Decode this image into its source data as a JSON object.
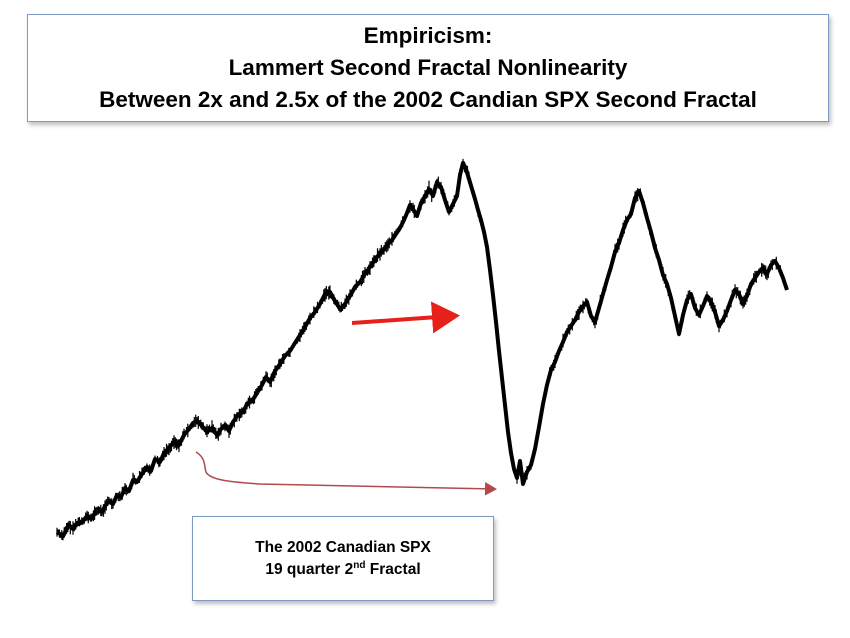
{
  "title": {
    "line1": "Empiricism:",
    "line2": "Lammert Second Fractal Nonlinearity",
    "line3": "Between 2x and 2.5x of the 2002 Candian SPX Second Fractal"
  },
  "caption": {
    "line1": "The 2002 Canadian SPX",
    "line2_prefix": "19 quarter 2",
    "line2_sup": "nd",
    "line2_suffix": " Fractal"
  },
  "colors": {
    "series": "#000000",
    "pointer_arrow": "#e8201a",
    "span_arrow": "#b24a4a"
  },
  "chart_data": {
    "type": "line",
    "title": "",
    "xlabel": "",
    "ylabel": "",
    "grid": false,
    "note": "",
    "x": [
      0,
      6,
      12,
      16,
      20,
      26,
      30,
      34,
      40,
      45,
      48,
      52,
      56,
      60,
      64,
      68,
      72,
      76,
      80,
      85,
      90,
      94,
      98,
      103,
      107,
      112,
      117,
      122,
      127,
      132,
      136,
      140,
      145,
      150,
      155,
      160,
      164,
      168,
      172,
      176,
      181,
      186,
      190,
      195,
      200,
      205,
      209,
      213,
      218,
      223,
      228,
      233,
      238,
      243,
      248,
      253,
      258,
      263,
      268,
      273,
      278,
      283,
      288,
      293,
      298,
      303,
      308,
      313,
      318,
      323,
      327,
      331,
      335,
      339,
      343,
      347,
      350,
      353,
      356,
      360,
      364,
      368,
      372,
      376,
      380,
      384,
      388,
      392,
      396,
      400,
      403,
      406,
      409,
      412,
      415,
      418,
      421,
      424,
      427,
      430,
      433,
      436,
      439,
      442,
      445,
      448,
      451,
      454,
      457,
      460,
      463,
      466,
      470,
      474,
      478,
      482,
      486,
      490,
      494,
      498,
      502,
      506,
      510,
      514,
      518,
      522,
      526,
      530,
      534,
      538,
      542,
      546,
      550,
      554,
      558,
      562,
      566,
      570,
      574,
      578,
      582,
      586,
      590,
      594,
      598,
      602,
      606,
      610,
      614,
      618,
      622,
      626,
      630,
      634,
      638,
      642,
      646,
      650,
      654,
      658,
      662,
      666,
      670,
      674,
      678,
      682,
      686,
      690,
      694,
      698,
      702,
      706,
      710,
      714,
      718,
      722,
      726,
      730
    ],
    "values": [
      8,
      4,
      15,
      11,
      17,
      19,
      24,
      21,
      30,
      28,
      34,
      39,
      36,
      45,
      43,
      52,
      49,
      60,
      58,
      66,
      73,
      69,
      81,
      78,
      87,
      92,
      98,
      95,
      105,
      111,
      117,
      119,
      114,
      108,
      112,
      105,
      111,
      115,
      109,
      118,
      125,
      128,
      136,
      139,
      147,
      155,
      163,
      158,
      169,
      176,
      184,
      189,
      197,
      205,
      213,
      222,
      228,
      236,
      246,
      248,
      239,
      231,
      236,
      244,
      253,
      258,
      266,
      273,
      280,
      287,
      291,
      296,
      300,
      306,
      312,
      320,
      327,
      335,
      331,
      324,
      337,
      344,
      351,
      344,
      358,
      353,
      340,
      328,
      336,
      344,
      365,
      377,
      371,
      361,
      351,
      341,
      330,
      320,
      308,
      293,
      270,
      245,
      218,
      189,
      162,
      135,
      108,
      87,
      71,
      62,
      79,
      56,
      68,
      75,
      91,
      113,
      136,
      155,
      170,
      178,
      189,
      198,
      208,
      214,
      220,
      228,
      234,
      238,
      224,
      218,
      232,
      246,
      260,
      273,
      288,
      297,
      310,
      320,
      326,
      342,
      349,
      337,
      322,
      308,
      292,
      280,
      265,
      256,
      242,
      224,
      206,
      225,
      240,
      246,
      232,
      225,
      234,
      244,
      238,
      228,
      214,
      220,
      229,
      240,
      250,
      246,
      236,
      244,
      256,
      262,
      268,
      272,
      266,
      275,
      279,
      272,
      262,
      250
    ]
  }
}
